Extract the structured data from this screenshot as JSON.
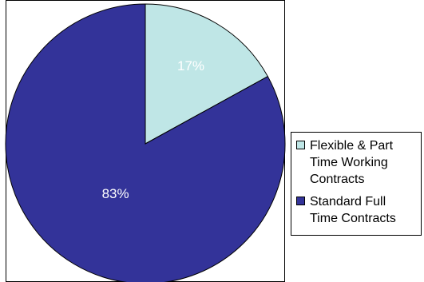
{
  "chart_data": {
    "type": "pie",
    "categories": [
      "Flexible & Part Time Working Contracts",
      "Standard Full Time Contracts"
    ],
    "values": [
      17,
      83
    ],
    "data_labels": [
      "17%",
      "83%"
    ],
    "colors": [
      "#bfe6e6",
      "#333399"
    ],
    "label_color": "#ffffff",
    "start_angle_deg": 0,
    "direction": "clockwise",
    "legend_position": "right",
    "legend": [
      {
        "label": "Flexible & Part\nTime Working\nContracts",
        "color": "#bfe6e6"
      },
      {
        "label": "Standard Full\nTime Contracts",
        "color": "#333399"
      }
    ]
  }
}
